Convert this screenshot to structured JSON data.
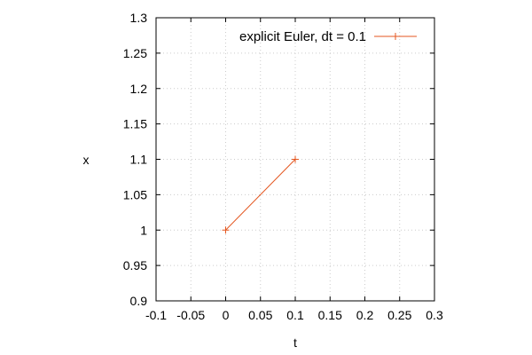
{
  "chart_data": {
    "type": "line",
    "xlabel": "t",
    "ylabel": "x",
    "xlim": [
      -0.1,
      0.3
    ],
    "ylim": [
      0.9,
      1.3
    ],
    "xticks": [
      "-0.1",
      "-0.05",
      "0",
      "0.05",
      "0.1",
      "0.15",
      "0.2",
      "0.25",
      "0.3"
    ],
    "yticks": [
      "0.9",
      "0.95",
      "1",
      "1.05",
      "1.1",
      "1.15",
      "1.2",
      "1.25",
      "1.3"
    ],
    "grid": true,
    "legend_position": "top-right",
    "series": [
      {
        "name": "explicit Euler, dt = 0.1",
        "color": "#e4561f",
        "marker": "plus",
        "x": [
          0,
          0.1
        ],
        "y": [
          1,
          1.1
        ]
      }
    ]
  }
}
